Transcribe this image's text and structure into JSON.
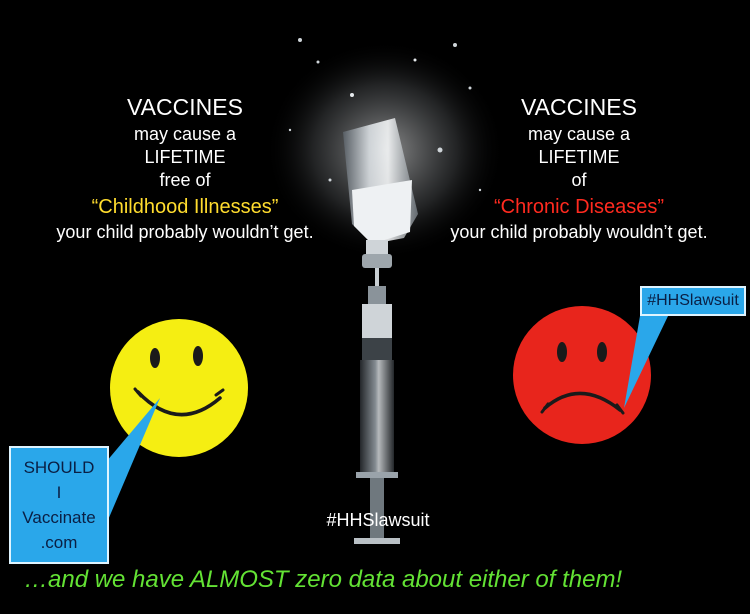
{
  "left_panel": {
    "heading": "VACCINES",
    "line1": "may cause a",
    "line2": "LIFETIME",
    "line3": "free of",
    "highlight": "“Childhood Illnesses”",
    "tail": "your child probably wouldn’t get."
  },
  "right_panel": {
    "heading": "VACCINES",
    "line1": "may cause a",
    "line2": "LIFETIME",
    "line3": "of",
    "highlight": "“Chronic Diseases”",
    "tail": "your child probably wouldn’t get."
  },
  "callouts": {
    "left_lines": [
      "SHOULD",
      "I",
      "Vaccinate",
      ".com"
    ],
    "right": "#HHSlawsuit"
  },
  "centre_tag": "#HHSlawsuit",
  "footer": "…and we have ALMOST zero data about either of them!",
  "icons": [
    "happy-face-icon",
    "sad-face-icon",
    "vial-icon",
    "syringe-icon",
    "splash-icon"
  ],
  "colors": {
    "background": "#000000",
    "text": "#ffffff",
    "highlight_left": "#ffdc2e",
    "highlight_right": "#ff2a1f",
    "footer": "#63e234",
    "callout": "#2aa7ea",
    "smiley_yellow": "#f5ee12",
    "smiley_red": "#e8251c"
  }
}
